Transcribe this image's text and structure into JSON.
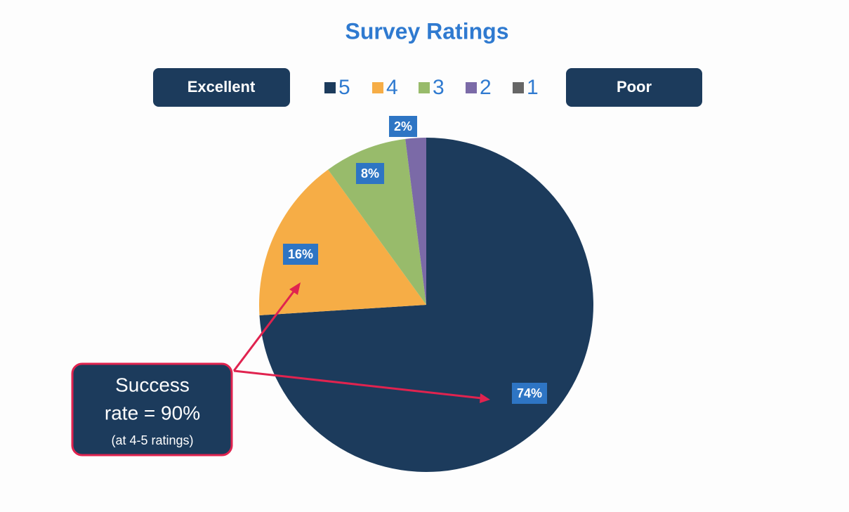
{
  "chart_data": {
    "type": "pie",
    "title": "Survey Ratings",
    "categories": [
      "5",
      "4",
      "3",
      "2",
      "1"
    ],
    "values": [
      74,
      16,
      8,
      2,
      0
    ],
    "value_labels": [
      "74%",
      "16%",
      "8%",
      "2%",
      null
    ],
    "colors": [
      "#1c3b5c",
      "#f6ad46",
      "#98bb6b",
      "#7b6aa7",
      "#666666"
    ],
    "scale_labels": {
      "high": "Excellent",
      "low": "Poor"
    },
    "annotation": {
      "lines": [
        "Success",
        "rate = 90%",
        "(at 4-5 ratings)"
      ]
    }
  }
}
